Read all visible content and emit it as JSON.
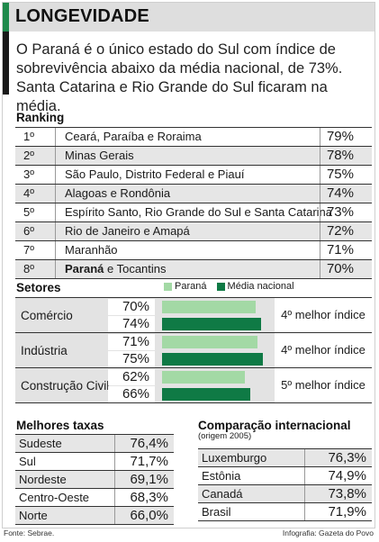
{
  "title": "LONGEVIDADE",
  "intro": "O Paraná é o único estado do Sul com índice de sobrevivência abaixo da média nacional, de 73%. Santa Catarina e Rio Grande do Sul ficaram na média.",
  "ranking": {
    "heading": "Ranking",
    "rows": [
      {
        "pos": "1º",
        "states": "Ceará, Paraíba e Roraima",
        "value": "79%"
      },
      {
        "pos": "2º",
        "states": "Minas Gerais",
        "value": "78%"
      },
      {
        "pos": "3º",
        "states": "São Paulo, Distrito Federal e Piauí",
        "value": "75%"
      },
      {
        "pos": "4º",
        "states": "Alagoas e Rondônia",
        "value": "74%"
      },
      {
        "pos": "5º",
        "states": "Espírito Santo, Rio Grande do Sul e Santa Catarina",
        "value": "73%"
      },
      {
        "pos": "6º",
        "states": "Rio de Janeiro e Amapá",
        "value": "72%"
      },
      {
        "pos": "7º",
        "states": "Maranhão",
        "value": "71%"
      },
      {
        "pos": "8º",
        "states_bold": "Paraná",
        "states_rest": " e Tocantins",
        "value": "70%"
      }
    ]
  },
  "chart_data": {
    "type": "bar",
    "title": "Setores",
    "categories": [
      "Comércio",
      "Indústria",
      "Construção Civil"
    ],
    "series": [
      {
        "name": "Paraná",
        "values": [
          70,
          71,
          62
        ],
        "color": "#a3d9a5"
      },
      {
        "name": "Média nacional",
        "values": [
          74,
          75,
          66
        ],
        "color": "#0f7a45"
      }
    ],
    "value_labels": {
      "Paraná": [
        "70%",
        "71%",
        "62%"
      ],
      "Média nacional": [
        "74%",
        "75%",
        "66%"
      ]
    },
    "annotations": [
      "4º melhor índice",
      "4º melhor índice",
      "5º melhor índice"
    ],
    "xlim": [
      0,
      80
    ],
    "legend_position": "top"
  },
  "melhores": {
    "heading": "Melhores taxas",
    "rows": [
      {
        "name": "Sudeste",
        "value": "76,4%"
      },
      {
        "name": "Sul",
        "value": "71,7%"
      },
      {
        "name": "Nordeste",
        "value": "69,1%"
      },
      {
        "name": "Centro-Oeste",
        "value": "68,3%"
      },
      {
        "name": "Norte",
        "value": "66,0%"
      }
    ]
  },
  "comparacao": {
    "heading": "Comparação internacional",
    "subheading": "(origem 2005)",
    "rows": [
      {
        "name": "Luxemburgo",
        "value": "76,3%"
      },
      {
        "name": "Estônia",
        "value": "74,9%"
      },
      {
        "name": "Canadá",
        "value": "73,8%"
      },
      {
        "name": "Brasil",
        "value": "71,9%"
      }
    ]
  },
  "footer": {
    "source": "Fonte: Sebrae.",
    "credit": "Infografia: Gazeta do Povo"
  }
}
